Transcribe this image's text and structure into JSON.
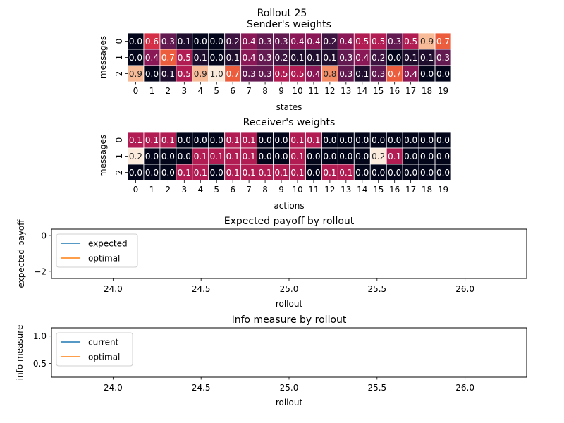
{
  "figure": {
    "suptitle": "Rollout 25"
  },
  "chart_data": [
    {
      "type": "heatmap",
      "title": "Sender's weights",
      "xlabel": "states",
      "ylabel": "messages",
      "x_ticks": [
        "0",
        "1",
        "2",
        "3",
        "4",
        "5",
        "6",
        "7",
        "8",
        "9",
        "10",
        "11",
        "12",
        "13",
        "14",
        "15",
        "16",
        "17",
        "18",
        "19"
      ],
      "y_ticks": [
        "0",
        "1",
        "2"
      ],
      "values": [
        [
          0.0,
          0.6,
          0.3,
          0.1,
          0.0,
          0.0,
          0.2,
          0.4,
          0.3,
          0.3,
          0.4,
          0.4,
          0.2,
          0.4,
          0.5,
          0.5,
          0.3,
          0.5,
          0.9,
          0.7
        ],
        [
          0.0,
          0.4,
          0.7,
          0.5,
          0.1,
          0.0,
          0.1,
          0.4,
          0.3,
          0.2,
          0.1,
          0.1,
          0.1,
          0.3,
          0.4,
          0.2,
          0.0,
          0.1,
          0.1,
          0.3
        ],
        [
          0.9,
          0.0,
          0.1,
          0.5,
          0.9,
          1.0,
          0.7,
          0.3,
          0.3,
          0.5,
          0.5,
          0.4,
          0.8,
          0.3,
          0.1,
          0.3,
          0.7,
          0.4,
          0.0,
          0.0
        ]
      ],
      "vmin": 0.0,
      "vmax": 1.0
    },
    {
      "type": "heatmap",
      "title": "Receiver's weights",
      "xlabel": "actions",
      "ylabel": "messages",
      "x_ticks": [
        "0",
        "1",
        "2",
        "3",
        "4",
        "5",
        "6",
        "7",
        "8",
        "9",
        "10",
        "11",
        "12",
        "13",
        "14",
        "15",
        "16",
        "17",
        "18",
        "19"
      ],
      "y_ticks": [
        "0",
        "1",
        "2"
      ],
      "values": [
        [
          0.1,
          0.1,
          0.1,
          0.0,
          0.0,
          0.0,
          0.1,
          0.1,
          0.0,
          0.0,
          0.1,
          0.1,
          0.0,
          0.0,
          0.0,
          0.0,
          0.0,
          0.0,
          0.0,
          0.0
        ],
        [
          0.2,
          0.0,
          0.0,
          0.0,
          0.1,
          0.1,
          0.1,
          0.1,
          0.0,
          0.0,
          0.1,
          0.0,
          0.0,
          0.0,
          0.0,
          0.2,
          0.1,
          0.0,
          0.0,
          0.0
        ],
        [
          0.0,
          0.0,
          0.0,
          0.1,
          0.1,
          0.0,
          0.1,
          0.1,
          0.1,
          0.1,
          0.1,
          0.0,
          0.1,
          0.1,
          0.0,
          0.0,
          0.0,
          0.0,
          0.0,
          0.0
        ]
      ],
      "vmin": 0.0,
      "vmax": 0.2
    },
    {
      "type": "line",
      "title": "Expected payoff by rollout",
      "xlabel": "rollout",
      "ylabel": "expected payoff",
      "xlim": [
        23.65,
        26.35
      ],
      "ylim": [
        -2.4,
        0.35
      ],
      "x_ticks": [
        "24.0",
        "24.5",
        "25.0",
        "25.5",
        "26.0"
      ],
      "y_ticks": [
        {
          "value": 0,
          "label": "0"
        },
        {
          "value": -2,
          "label": "−2"
        }
      ],
      "legend_position": "upper-left",
      "series": [
        {
          "name": "expected",
          "color": "#1f77b4",
          "x": [],
          "y": []
        },
        {
          "name": "optimal",
          "color": "#ff7f0e",
          "x": [],
          "y": []
        }
      ]
    },
    {
      "type": "line",
      "title": "Info measure by rollout",
      "xlabel": "rollout",
      "ylabel": "info measure",
      "xlim": [
        23.65,
        26.35
      ],
      "ylim": [
        0.25,
        1.15
      ],
      "x_ticks": [
        "24.0",
        "24.5",
        "25.0",
        "25.5",
        "26.0"
      ],
      "y_ticks": [
        {
          "value": 1.0,
          "label": "1.0"
        },
        {
          "value": 0.5,
          "label": "0.5"
        }
      ],
      "legend_position": "upper-left",
      "series": [
        {
          "name": "current",
          "color": "#1f77b4",
          "x": [],
          "y": []
        },
        {
          "name": "optimal",
          "color": "#ff7f0e",
          "x": [],
          "y": []
        }
      ]
    }
  ]
}
